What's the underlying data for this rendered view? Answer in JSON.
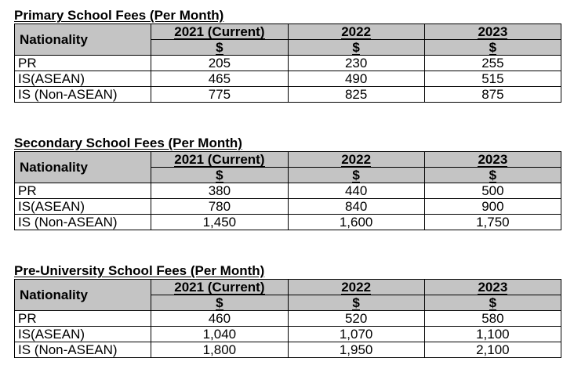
{
  "header": {
    "nationality": "Nationality",
    "years": [
      "2021 (Current)",
      "2022",
      "2023"
    ],
    "currency": "$"
  },
  "tables": [
    {
      "title": "Primary School Fees (Per Month)",
      "rows": [
        {
          "nationality": "PR",
          "values": [
            "205",
            "230",
            "255"
          ]
        },
        {
          "nationality": "IS(ASEAN)",
          "values": [
            "465",
            "490",
            "515"
          ]
        },
        {
          "nationality": "IS (Non-ASEAN)",
          "values": [
            "775",
            "825",
            "875"
          ]
        }
      ]
    },
    {
      "title": "Secondary School Fees (Per Month)",
      "rows": [
        {
          "nationality": "PR",
          "values": [
            "380",
            "440",
            "500"
          ]
        },
        {
          "nationality": "IS(ASEAN)",
          "values": [
            "780",
            "840",
            "900"
          ]
        },
        {
          "nationality": "IS (Non-ASEAN)",
          "values": [
            "1,450",
            "1,600",
            "1,750"
          ]
        }
      ]
    },
    {
      "title": "Pre-University School Fees (Per Month)",
      "rows": [
        {
          "nationality": "PR",
          "values": [
            "460",
            "520",
            "580"
          ]
        },
        {
          "nationality": "IS(ASEAN)",
          "values": [
            "1,040",
            "1,070",
            "1,100"
          ]
        },
        {
          "nationality": "IS (Non-ASEAN)",
          "values": [
            "1,800",
            "1,950",
            "2,100"
          ]
        }
      ]
    }
  ]
}
